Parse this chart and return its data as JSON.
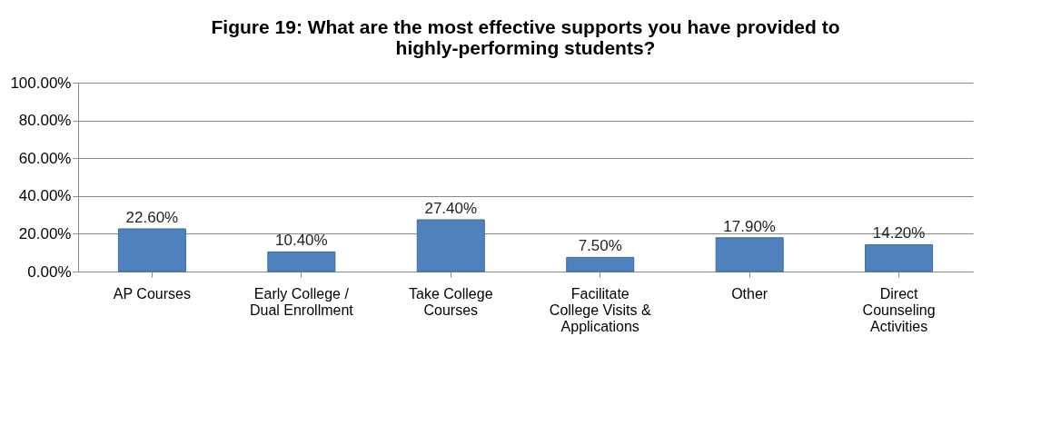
{
  "chart_data": {
    "type": "bar",
    "title": "Figure 19: What are the most effective supports you have provided to highly-performing students?",
    "categories": [
      "AP Courses",
      "Early College / Dual Enrollment",
      "Take College Courses",
      "Facilitate College Visits & Applications",
      "Other",
      "Direct Counseling Activities"
    ],
    "values": [
      22.6,
      10.4,
      27.4,
      7.5,
      17.9,
      14.2
    ],
    "value_labels": [
      "22.60%",
      "10.40%",
      "27.40%",
      "7.50%",
      "17.90%",
      "14.20%"
    ],
    "color": "#4f81bd",
    "ylim": [
      0,
      100
    ],
    "yticks": [
      {
        "value": 0,
        "label": "0.00%"
      },
      {
        "value": 20,
        "label": "20.00%"
      },
      {
        "value": 40,
        "label": "40.00%"
      },
      {
        "value": 60,
        "label": "60.00%"
      },
      {
        "value": 80,
        "label": "80.00%"
      },
      {
        "value": 100,
        "label": "100.00%"
      }
    ],
    "grid": "y"
  }
}
